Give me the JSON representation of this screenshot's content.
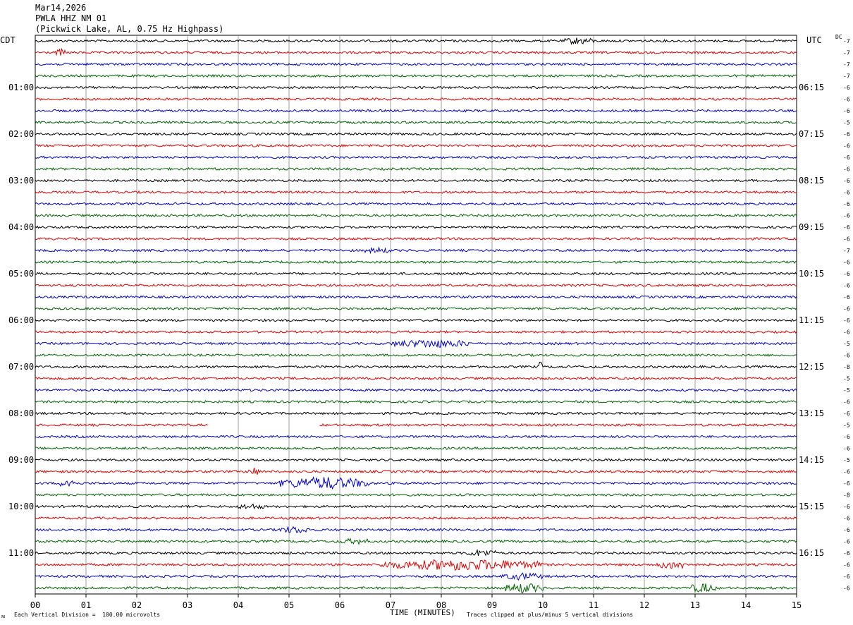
{
  "header": {
    "date": "Mar14,2026",
    "station": "PWLA HHZ NM 01",
    "description": "(Pickwick Lake, AL, 0.75 Hz Highpass)"
  },
  "left_tz": "CDT",
  "right_tz": "UTC",
  "dc_label": "DC",
  "footer": {
    "scale_note": "Each Vertical Division =  100.00 microvolts",
    "axis_title": "TIME (MINUTES)",
    "clip_note": "Traces clipped at plus/minus 5 vertical divisions",
    "corner_mark": "ᴍ"
  },
  "colors": {
    "black": "#000000",
    "red": "#e00000",
    "blue": "#0000cc",
    "green": "#006400",
    "grid": "#888888"
  },
  "chart_data": {
    "type": "line",
    "xlabel": "TIME (MINUTES)",
    "xlim": [
      0,
      15
    ],
    "x_ticks": [
      "00",
      "01",
      "02",
      "03",
      "04",
      "05",
      "06",
      "07",
      "08",
      "09",
      "10",
      "11",
      "12",
      "13",
      "14",
      "15"
    ],
    "color_cycle": [
      "black",
      "red",
      "blue",
      "green"
    ],
    "trace_count": 48,
    "minutes_per_trace": 15,
    "left_time_labels": [
      {
        "trace": 4,
        "label": "01:00"
      },
      {
        "trace": 8,
        "label": "02:00"
      },
      {
        "trace": 12,
        "label": "03:00"
      },
      {
        "trace": 16,
        "label": "04:00"
      },
      {
        "trace": 20,
        "label": "05:00"
      },
      {
        "trace": 24,
        "label": "06:00"
      },
      {
        "trace": 28,
        "label": "07:00"
      },
      {
        "trace": 32,
        "label": "08:00"
      },
      {
        "trace": 36,
        "label": "09:00"
      },
      {
        "trace": 40,
        "label": "10:00"
      },
      {
        "trace": 44,
        "label": "11:00"
      }
    ],
    "right_time_labels": [
      {
        "trace": 4,
        "label": "06:15"
      },
      {
        "trace": 8,
        "label": "07:15"
      },
      {
        "trace": 12,
        "label": "08:15"
      },
      {
        "trace": 16,
        "label": "09:15"
      },
      {
        "trace": 20,
        "label": "10:15"
      },
      {
        "trace": 24,
        "label": "11:15"
      },
      {
        "trace": 28,
        "label": "12:15"
      },
      {
        "trace": 32,
        "label": "13:15"
      },
      {
        "trace": 36,
        "label": "14:15"
      },
      {
        "trace": 40,
        "label": "15:15"
      },
      {
        "trace": 44,
        "label": "16:15"
      }
    ],
    "dc_offsets": [
      "-7",
      "-7",
      "-7",
      "-7",
      "-6",
      "-6",
      "-6",
      "-5",
      "-6",
      "-6",
      "-6",
      "-6",
      "-6",
      "-6",
      "-6",
      "-6",
      "-6",
      "-6",
      "-7",
      "-6",
      "-6",
      "-6",
      "-6",
      "-6",
      "-6",
      "-6",
      "-5",
      "-6",
      "-8",
      "-5",
      "-5",
      "-6",
      "-6",
      "-5",
      "-6",
      "-6",
      "-5",
      "-6",
      "-6",
      "-8",
      "-6",
      "-6",
      "-6",
      "-6",
      "-6",
      "-6",
      "-6",
      "-6"
    ],
    "base_amplitude": 1.6,
    "events": [
      {
        "trace": 0,
        "start_min": 10.4,
        "end_min": 11.0,
        "amp": 4
      },
      {
        "trace": 1,
        "start_min": 0.4,
        "end_min": 0.6,
        "amp": 4
      },
      {
        "trace": 18,
        "start_min": 6.5,
        "end_min": 7.0,
        "amp": 3
      },
      {
        "trace": 26,
        "start_min": 7.0,
        "end_min": 8.6,
        "amp": 5
      },
      {
        "trace": 28,
        "start_min": 9.9,
        "end_min": 10.0,
        "amp": 6
      },
      {
        "trace": 37,
        "start_min": 4.2,
        "end_min": 4.4,
        "amp": 6
      },
      {
        "trace": 38,
        "start_min": 0.5,
        "end_min": 0.8,
        "amp": 7
      },
      {
        "trace": 38,
        "start_min": 4.8,
        "end_min": 6.6,
        "amp": 8
      },
      {
        "trace": 40,
        "start_min": 4.0,
        "end_min": 4.5,
        "amp": 3
      },
      {
        "trace": 42,
        "start_min": 4.8,
        "end_min": 5.4,
        "amp": 4
      },
      {
        "trace": 43,
        "start_min": 6.0,
        "end_min": 6.6,
        "amp": 3
      },
      {
        "trace": 44,
        "start_min": 8.5,
        "end_min": 9.1,
        "amp": 4
      },
      {
        "trace": 45,
        "start_min": 6.8,
        "end_min": 10.0,
        "amp": 7
      },
      {
        "trace": 45,
        "start_min": 12.2,
        "end_min": 13.0,
        "amp": 5
      },
      {
        "trace": 46,
        "start_min": 9.2,
        "end_min": 10.0,
        "amp": 4
      },
      {
        "trace": 47,
        "start_min": 9.2,
        "end_min": 10.0,
        "amp": 6
      },
      {
        "trace": 47,
        "start_min": 12.9,
        "end_min": 13.4,
        "amp": 6
      }
    ],
    "gaps": [
      {
        "trace": 33,
        "start_min": 3.4,
        "end_min": 5.6
      }
    ]
  }
}
